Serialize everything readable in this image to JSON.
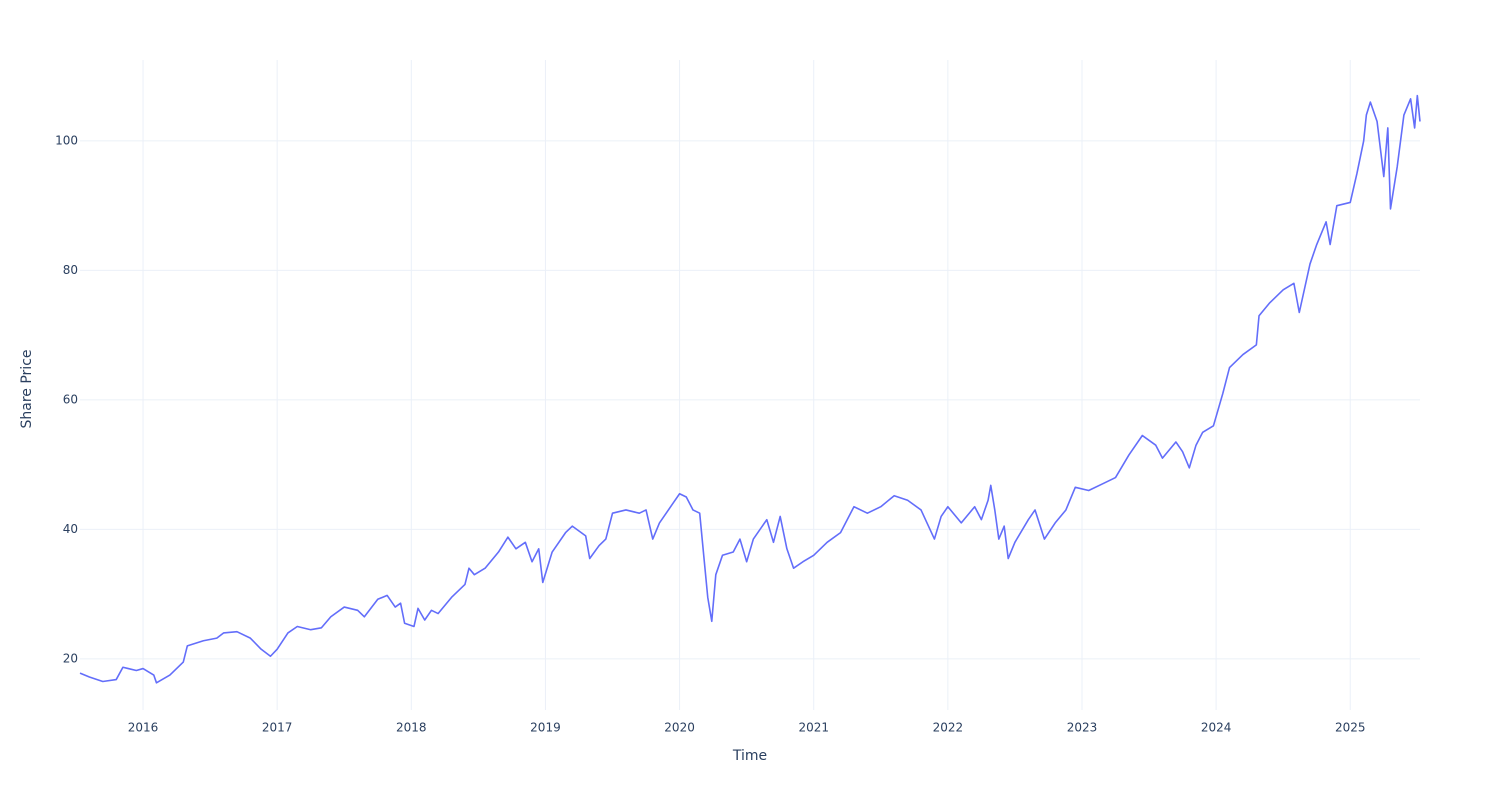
{
  "chart_data": {
    "type": "line",
    "x_label": "Time",
    "y_label": "Share Price",
    "x": [
      2015.53,
      2015.6,
      2015.7,
      2015.8,
      2015.85,
      2015.95,
      2016.0,
      2016.08,
      2016.1,
      2016.2,
      2016.3,
      2016.33,
      2016.45,
      2016.55,
      2016.6,
      2016.7,
      2016.8,
      2016.88,
      2016.95,
      2017.0,
      2017.08,
      2017.15,
      2017.25,
      2017.33,
      2017.4,
      2017.5,
      2017.6,
      2017.65,
      2017.75,
      2017.82,
      2017.88,
      2017.92,
      2017.95,
      2018.02,
      2018.05,
      2018.1,
      2018.15,
      2018.2,
      2018.3,
      2018.4,
      2018.43,
      2018.47,
      2018.55,
      2018.65,
      2018.72,
      2018.78,
      2018.85,
      2018.9,
      2018.95,
      2018.98,
      2019.05,
      2019.15,
      2019.2,
      2019.3,
      2019.33,
      2019.4,
      2019.45,
      2019.5,
      2019.6,
      2019.7,
      2019.75,
      2019.8,
      2019.85,
      2019.95,
      2020.0,
      2020.05,
      2020.1,
      2020.15,
      2020.18,
      2020.21,
      2020.24,
      2020.27,
      2020.32,
      2020.4,
      2020.45,
      2020.5,
      2020.55,
      2020.65,
      2020.7,
      2020.75,
      2020.8,
      2020.85,
      2020.92,
      2021.0,
      2021.1,
      2021.2,
      2021.3,
      2021.4,
      2021.5,
      2021.6,
      2021.7,
      2021.8,
      2021.9,
      2021.95,
      2022.0,
      2022.1,
      2022.2,
      2022.25,
      2022.3,
      2022.32,
      2022.35,
      2022.38,
      2022.42,
      2022.45,
      2022.5,
      2022.6,
      2022.65,
      2022.72,
      2022.8,
      2022.88,
      2022.95,
      2023.05,
      2023.15,
      2023.25,
      2023.35,
      2023.45,
      2023.55,
      2023.6,
      2023.7,
      2023.75,
      2023.8,
      2023.85,
      2023.9,
      2023.98,
      2024.05,
      2024.1,
      2024.2,
      2024.3,
      2024.32,
      2024.4,
      2024.5,
      2024.58,
      2024.62,
      2024.7,
      2024.75,
      2024.82,
      2024.85,
      2024.9,
      2025.0,
      2025.05,
      2025.1,
      2025.12,
      2025.15,
      2025.2,
      2025.25,
      2025.28,
      2025.3,
      2025.35,
      2025.4,
      2025.45,
      2025.48,
      2025.5,
      2025.52
    ],
    "values": [
      17.8,
      17.2,
      16.5,
      16.8,
      18.7,
      18.2,
      18.5,
      17.5,
      16.3,
      17.5,
      19.5,
      22,
      22.8,
      23.2,
      24,
      24.2,
      23.2,
      21.5,
      20.4,
      21.5,
      24,
      25,
      24.5,
      24.8,
      26.5,
      28,
      27.5,
      26.5,
      29.2,
      29.8,
      28,
      28.6,
      25.5,
      25,
      27.8,
      26,
      27.5,
      27,
      29.5,
      31.5,
      34,
      33,
      34,
      36.5,
      38.8,
      37,
      38,
      35,
      37,
      31.8,
      36.5,
      39.5,
      40.5,
      39,
      35.5,
      37.5,
      38.5,
      42.5,
      43,
      42.5,
      43,
      38.5,
      41,
      44,
      45.5,
      45,
      43,
      42.5,
      36,
      29.5,
      25.8,
      33,
      36,
      36.5,
      38.5,
      35,
      38.5,
      41.5,
      38,
      42,
      37,
      34,
      35,
      36,
      38,
      39.5,
      43.5,
      42.5,
      43.5,
      45.2,
      44.5,
      43,
      38.5,
      42,
      43.5,
      41,
      43.5,
      41.5,
      44.5,
      46.8,
      43,
      38.5,
      40.5,
      35.5,
      38,
      41.5,
      43,
      38.5,
      41,
      43,
      46.5,
      46,
      47,
      48,
      51.5,
      54.5,
      53,
      51,
      53.5,
      52,
      49.5,
      53,
      55,
      56,
      61,
      65,
      67,
      68.5,
      73,
      75,
      77,
      78,
      73.5,
      81,
      84,
      87.5,
      84,
      90,
      90.5,
      95,
      100,
      104,
      106,
      103,
      94.5,
      102,
      89.5,
      96,
      104,
      106.5,
      102,
      107,
      103
    ],
    "color": "#636efa",
    "xlim": [
      2015.53,
      2025.52
    ],
    "xticks": [
      2016,
      2017,
      2018,
      2019,
      2020,
      2021,
      2022,
      2023,
      2024,
      2025
    ],
    "ylim": [
      12.1,
      112.5
    ],
    "yticks": [
      20,
      40,
      60,
      80,
      100
    ],
    "grid": true
  }
}
